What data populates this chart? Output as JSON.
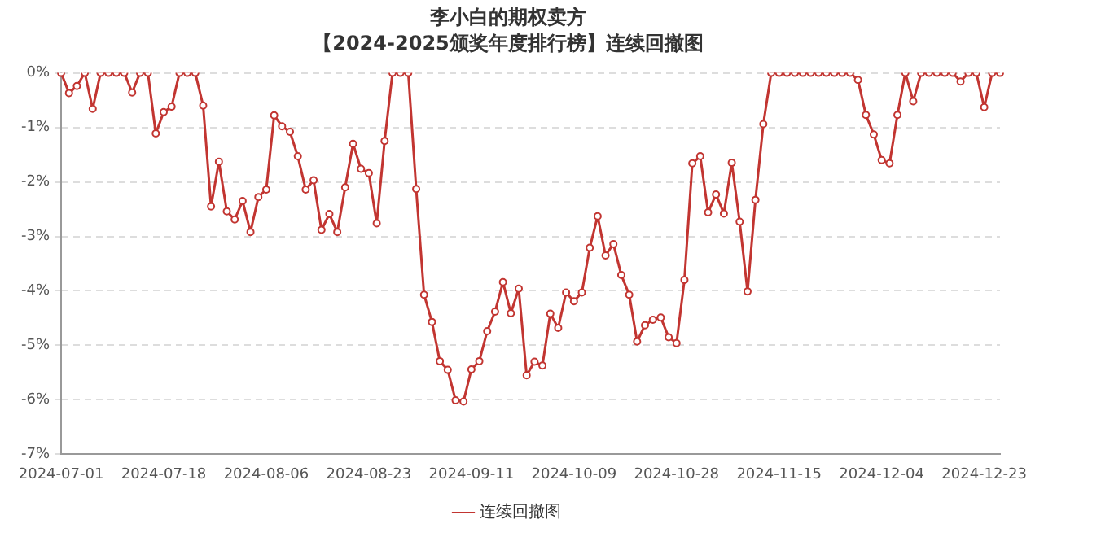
{
  "chart_data": {
    "type": "line",
    "title": "李小白的期权卖方",
    "subtitle": "【2024-2025颁奖年度排行榜】连续回撤图",
    "categories": [
      "2024-07-01",
      null,
      null,
      null,
      null,
      null,
      null,
      null,
      null,
      null,
      null,
      null,
      null,
      "2024-07-18",
      null,
      null,
      null,
      null,
      null,
      null,
      null,
      null,
      null,
      null,
      null,
      null,
      "2024-08-06",
      null,
      null,
      null,
      null,
      null,
      null,
      null,
      null,
      null,
      null,
      null,
      null,
      "2024-08-23",
      null,
      null,
      null,
      null,
      null,
      null,
      null,
      null,
      null,
      null,
      null,
      null,
      "2024-09-11",
      null,
      null,
      null,
      null,
      null,
      null,
      null,
      null,
      null,
      null,
      null,
      null,
      "2024-10-09",
      null,
      null,
      null,
      null,
      null,
      null,
      null,
      null,
      null,
      null,
      null,
      null,
      "2024-10-28",
      null,
      null,
      null,
      null,
      null,
      null,
      null,
      null,
      null,
      null,
      null,
      null,
      "2024-11-15",
      null,
      null,
      null,
      null,
      null,
      null,
      null,
      null,
      null,
      null,
      null,
      null,
      "2024-12-04",
      null,
      null,
      null,
      null,
      null,
      null,
      null,
      null,
      null,
      null,
      null,
      null,
      "2024-12-23",
      null,
      null
    ],
    "series": [
      {
        "name": "连续回撤图",
        "color": "#c23531",
        "values": [
          0,
          -0.37,
          -0.24,
          0,
          -0.66,
          0,
          0,
          0,
          0,
          -0.36,
          0,
          0,
          -1.11,
          -0.72,
          -0.62,
          0,
          0,
          0,
          -0.6,
          -2.45,
          -1.63,
          -2.54,
          -2.69,
          -2.35,
          -2.92,
          -2.28,
          -2.14,
          -0.78,
          -0.98,
          -1.08,
          -1.53,
          -2.14,
          -1.97,
          -2.88,
          -2.59,
          -2.92,
          -2.1,
          -1.3,
          -1.76,
          -1.84,
          -2.76,
          -1.25,
          0,
          0,
          0,
          -2.13,
          -4.07,
          -4.57,
          -5.29,
          -5.45,
          -6.01,
          -6.03,
          -5.44,
          -5.29,
          -4.74,
          -4.38,
          -3.84,
          -4.41,
          -3.96,
          -5.55,
          -5.3,
          -5.37,
          -4.42,
          -4.68,
          -4.03,
          -4.19,
          -4.03,
          -3.21,
          -2.63,
          -3.35,
          -3.14,
          -3.71,
          -4.07,
          -4.93,
          -4.63,
          -4.53,
          -4.49,
          -4.85,
          -4.96,
          -3.8,
          -1.66,
          -1.53,
          -2.56,
          -2.23,
          -2.58,
          -1.65,
          -2.73,
          -4.01,
          -2.33,
          -0.94,
          0,
          0,
          0,
          0,
          0,
          0,
          0,
          0,
          0,
          0,
          0,
          -0.13,
          -0.77,
          -1.13,
          -1.6,
          -1.66,
          -0.77,
          0,
          -0.52,
          0,
          0,
          0,
          0,
          0,
          -0.16,
          0,
          0,
          -0.63,
          0,
          0
        ]
      }
    ],
    "ylim": [
      -7,
      0
    ],
    "yticks": [
      {
        "value": 0,
        "label": "0%"
      },
      {
        "value": -1,
        "label": "-1%"
      },
      {
        "value": -2,
        "label": "-2%"
      },
      {
        "value": -3,
        "label": "-3%"
      },
      {
        "value": -4,
        "label": "-4%"
      },
      {
        "value": -5,
        "label": "-5%"
      },
      {
        "value": -6,
        "label": "-6%"
      },
      {
        "value": -7,
        "label": "-7%"
      }
    ],
    "grid": "y",
    "legend": "bottom",
    "marker": "circle",
    "line_style": "solid"
  }
}
